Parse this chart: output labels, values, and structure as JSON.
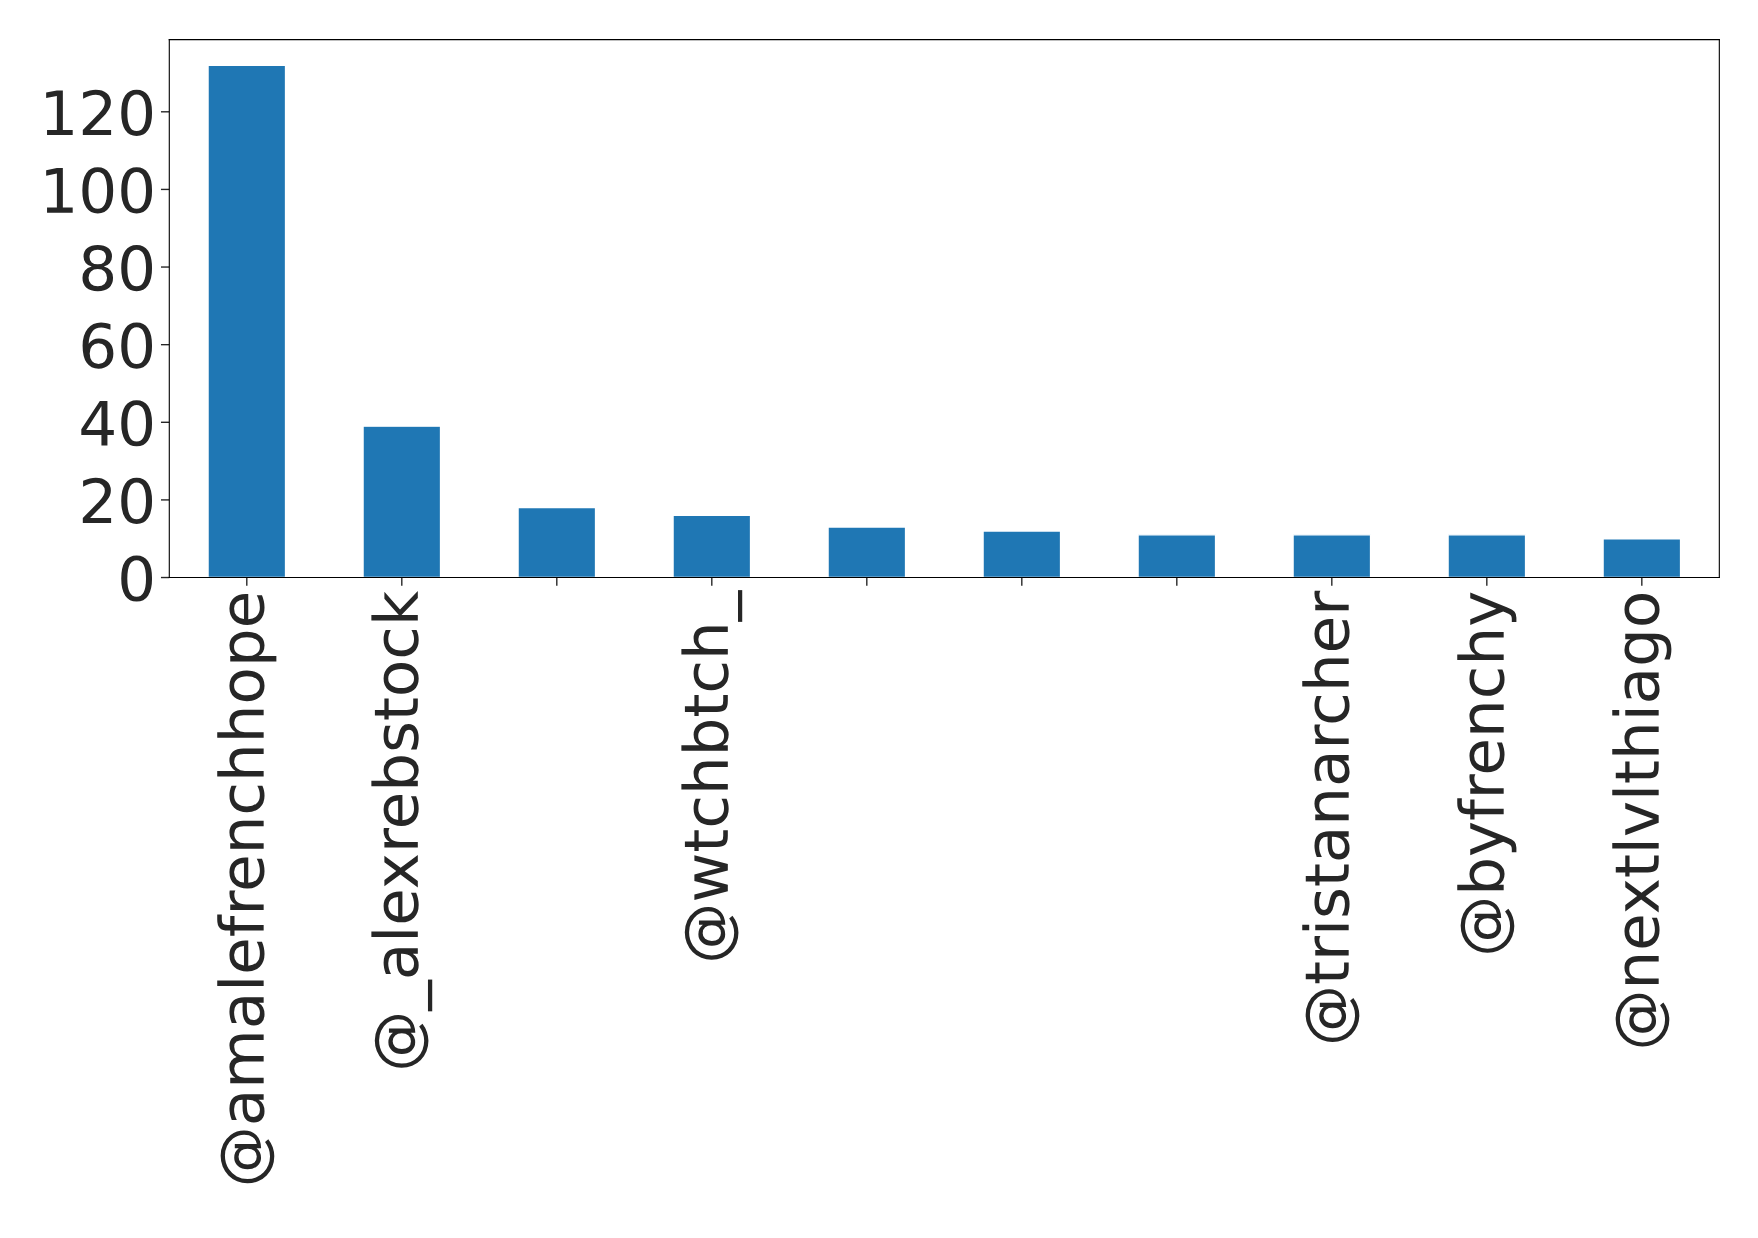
{
  "chart_data": {
    "type": "bar",
    "categories": [
      "@amalefrenchhope",
      "@_alexrebstock",
      null,
      "@wtchbtch_",
      null,
      null,
      null,
      "@tristanarcher",
      "@byfrenchy",
      "@nextlvlthiago"
    ],
    "values": [
      132,
      39,
      18,
      16,
      13,
      12,
      11,
      11,
      11,
      10
    ],
    "color": "#1f77b4",
    "ylim": [
      0,
      138.6
    ],
    "yticks": [
      0,
      20,
      40,
      60,
      80,
      100,
      120
    ],
    "grid": false,
    "legend": false
  }
}
